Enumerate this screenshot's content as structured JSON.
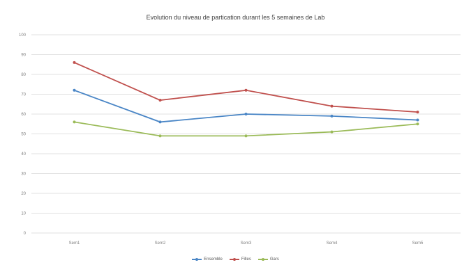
{
  "chart_data": {
    "type": "line",
    "title": "Evolution du niveau de partication durant les 5 semaines de Lab",
    "categories": [
      "Sem1",
      "Sem2",
      "Sem3",
      "Sem4",
      "Sem5"
    ],
    "ylim": [
      0,
      100
    ],
    "yticks": [
      0,
      10,
      20,
      30,
      40,
      50,
      60,
      70,
      80,
      90,
      100
    ],
    "grid": true,
    "legend_position": "bottom",
    "series": [
      {
        "name": "Ensemble",
        "color": "#4a86c6",
        "values": [
          72,
          56,
          60,
          59,
          57
        ]
      },
      {
        "name": "Filles",
        "color": "#c0504d",
        "values": [
          86,
          67,
          72,
          64,
          61
        ]
      },
      {
        "name": "Gars",
        "color": "#9bbb59",
        "values": [
          56,
          49,
          49,
          51,
          55
        ]
      }
    ]
  }
}
